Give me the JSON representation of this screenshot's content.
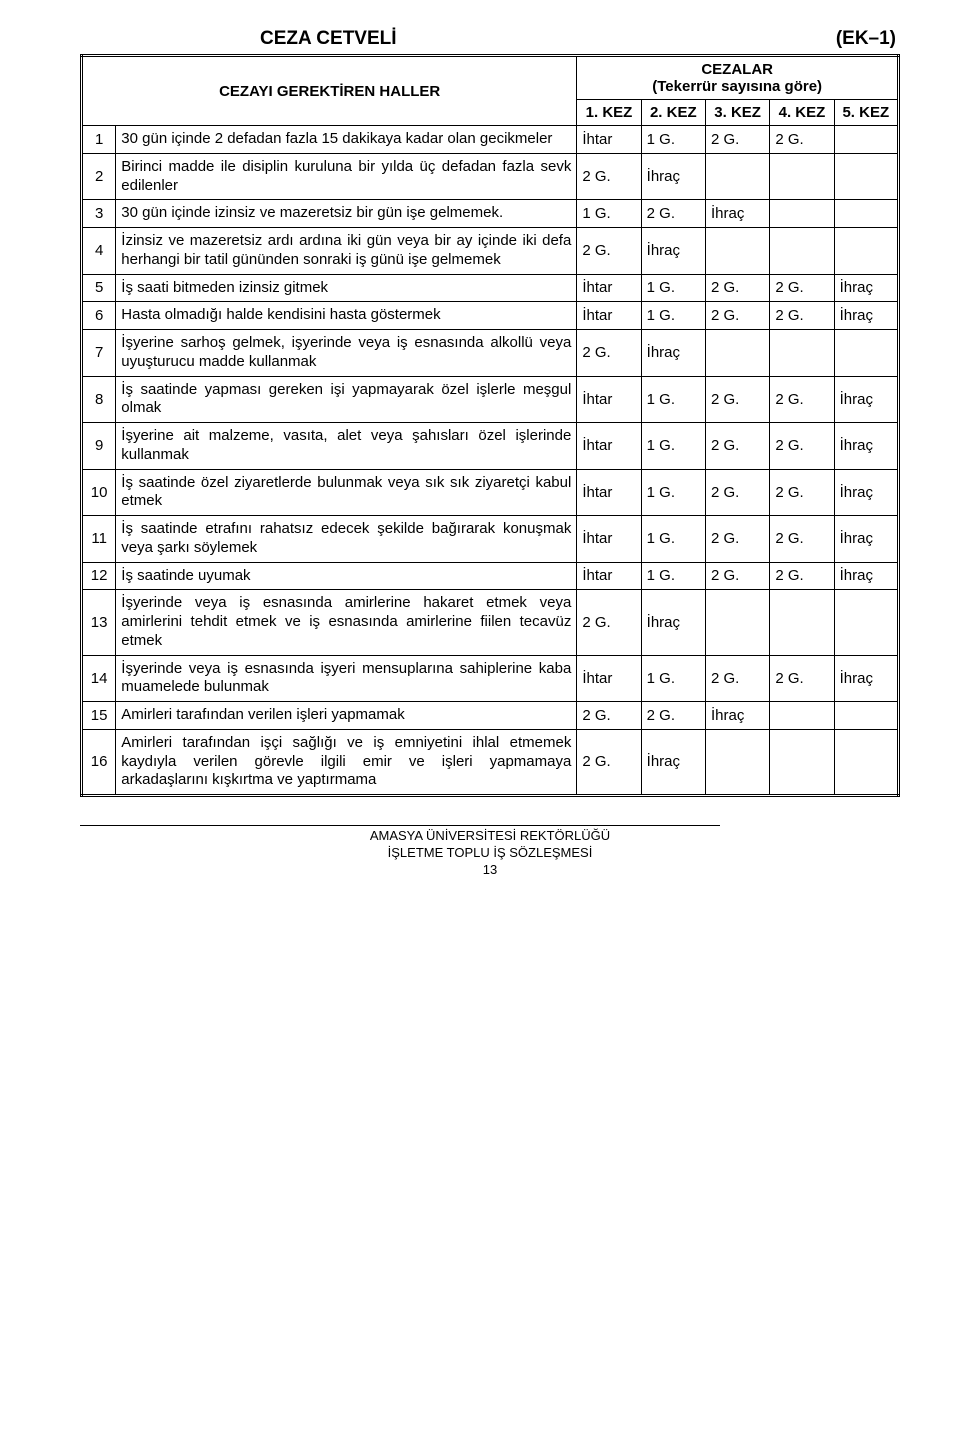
{
  "title_left": "CEZA CETVELİ",
  "title_right": "(EK–1)",
  "header_offenses": "CEZAYI GEREKTİREN HALLER",
  "header_penalties": "CEZALAR",
  "header_penalties_sub": "(Tekerrür sayısına göre)",
  "col_labels": [
    "1. KEZ",
    "2. KEZ",
    "3. KEZ",
    "4. KEZ",
    "5. KEZ"
  ],
  "rows": [
    {
      "n": "1",
      "desc": "30 gün içinde 2 defadan fazla 15 dakikaya kadar olan gecikmeler",
      "c": [
        "İhtar",
        "1 G.",
        "2 G.",
        "2 G.",
        ""
      ]
    },
    {
      "n": "2",
      "desc": "Birinci madde ile disiplin kuruluna bir yılda üç defadan fazla sevk edilenler",
      "c": [
        "2 G.",
        "İhraç",
        "",
        "",
        ""
      ]
    },
    {
      "n": "3",
      "desc": "30 gün içinde izinsiz ve mazeretsiz bir gün işe gelmemek.",
      "c": [
        "1 G.",
        "2 G.",
        "İhraç",
        "",
        ""
      ]
    },
    {
      "n": "4",
      "desc": "İzinsiz ve mazeretsiz ardı ardına iki gün veya bir ay içinde iki defa herhangi bir tatil gününden sonraki iş günü işe gelmemek",
      "c": [
        "2 G.",
        "İhraç",
        "",
        "",
        ""
      ]
    },
    {
      "n": "5",
      "desc": "İş saati bitmeden izinsiz gitmek",
      "c": [
        "İhtar",
        "1 G.",
        "2 G.",
        "2 G.",
        "İhraç"
      ]
    },
    {
      "n": "6",
      "desc": "Hasta olmadığı halde kendisini hasta göstermek",
      "c": [
        "İhtar",
        "1 G.",
        "2 G.",
        "2 G.",
        "İhraç"
      ]
    },
    {
      "n": "7",
      "desc": "İşyerine sarhoş gelmek, işyerinde veya iş esnasında alkollü veya uyuşturucu madde kullanmak",
      "c": [
        "2 G.",
        "İhraç",
        "",
        "",
        ""
      ]
    },
    {
      "n": "8",
      "desc": "İş saatinde yapması gereken işi yapmayarak özel işlerle meşgul olmak",
      "c": [
        "İhtar",
        "1 G.",
        "2 G.",
        "2 G.",
        "İhraç"
      ]
    },
    {
      "n": "9",
      "desc": "İşyerine ait malzeme,  vasıta, alet veya şahısları özel işlerinde kullanmak",
      "c": [
        "İhtar",
        "1 G.",
        "2 G.",
        "2 G.",
        "İhraç"
      ]
    },
    {
      "n": "10",
      "desc": "İş saatinde özel ziyaretlerde bulunmak veya sık sık ziyaretçi kabul etmek",
      "c": [
        "İhtar",
        "1 G.",
        "2 G.",
        "2 G.",
        "İhraç"
      ]
    },
    {
      "n": "11",
      "desc": "İş saatinde etrafını rahatsız edecek şekilde bağırarak konuşmak veya şarkı söylemek",
      "c": [
        "İhtar",
        "1 G.",
        "2 G.",
        "2 G.",
        "İhraç"
      ]
    },
    {
      "n": "12",
      "desc": "İş saatinde uyumak",
      "c": [
        "İhtar",
        "1 G.",
        "2 G.",
        "2 G.",
        "İhraç"
      ]
    },
    {
      "n": "13",
      "desc": "İşyerinde veya iş esnasında amirlerine hakaret etmek veya amirlerini tehdit etmek ve iş esnasında amirlerine fiilen tecavüz etmek",
      "c": [
        "2 G.",
        "İhraç",
        "",
        "",
        ""
      ]
    },
    {
      "n": "14",
      "desc": "İşyerinde veya iş esnasında işyeri mensuplarına sahiplerine kaba muamelede bulunmak",
      "c": [
        "İhtar",
        "1 G.",
        "2 G.",
        "2 G.",
        "İhraç"
      ]
    },
    {
      "n": "15",
      "desc": "Amirleri tarafından verilen işleri yapmamak",
      "c": [
        "2 G.",
        "2 G.",
        "İhraç",
        "",
        ""
      ]
    },
    {
      "n": "16",
      "desc": "Amirleri tarafından işçi sağlığı ve iş emniyetini ihlal etmemek kaydıyla verilen görevle ilgili emir ve işleri yapmamaya arkadaşlarını kışkırtma ve yaptırmama",
      "c": [
        "2 G.",
        "İhraç",
        "",
        "",
        ""
      ]
    }
  ],
  "footer_line1": "AMASYA ÜNİVERSİTESİ REKTÖRLÜĞÜ",
  "footer_line2": "İŞLETME TOPLU İŞ SÖZLEŞMESİ",
  "footer_page": "13"
}
